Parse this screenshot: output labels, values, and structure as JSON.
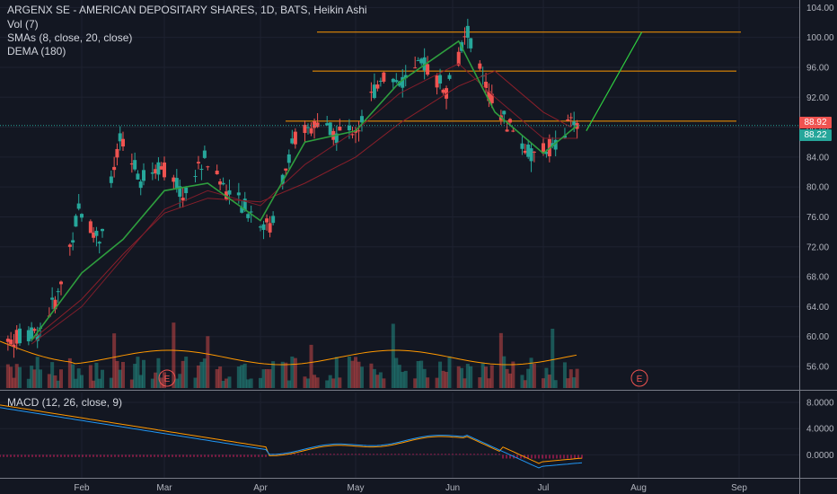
{
  "header": {
    "title": "ARGENX SE - AMERICAN DEPOSITARY SHARES, 1D, BATS, Heikin Ashi",
    "vol_label": "Vol (7)",
    "smas_label": "SMAs (8, close, 20, close)",
    "dema_label": "DEMA (180)",
    "macd_label": "MACD (12, 26, close, 9)"
  },
  "price_tags": {
    "last": "88.92",
    "sma": "88.22"
  },
  "colors": {
    "background": "#131722",
    "up": "#26a69a",
    "down": "#ef5350",
    "sma_fast": "#2e9e3e",
    "sma_slow": "#8a1f2a",
    "level_lines": "#ff9800",
    "projection": "#2ecc40",
    "macd_line": "#2196f3",
    "signal_line": "#ff9800",
    "histogram": "#e91e63",
    "earnings": "#ef5350"
  },
  "earnings_markers": [
    "E",
    "E"
  ],
  "chart_data": {
    "type": "candlestick",
    "style": "Heikin Ashi",
    "interval": "1D",
    "x_ticks": [
      "Feb",
      "Mar",
      "Apr",
      "May",
      "Jun",
      "Jul",
      "Aug",
      "Sep"
    ],
    "price_axis": {
      "ticks": [
        "104.00",
        "100.00",
        "96.00",
        "92.00",
        "88.00",
        "84.00",
        "80.00",
        "76.00",
        "72.00",
        "68.00",
        "64.00",
        "60.00",
        "56.00"
      ],
      "ylim": [
        53,
        105
      ]
    },
    "macd_axis": {
      "ticks": [
        "8.0000",
        "4.0000",
        "0.0000"
      ],
      "ylim": [
        -3.5,
        9.5
      ]
    },
    "level_lines": [
      100.7,
      95.5,
      88.8
    ],
    "projection": [
      {
        "date": "2019-07-15",
        "price": 87.5
      },
      {
        "date": "2019-08-02",
        "price": 100.7
      }
    ],
    "dema": [
      [
        "2019-01-15",
        59.5
      ],
      [
        "2019-02-01",
        65.0
      ],
      [
        "2019-02-15",
        71.0
      ],
      [
        "2019-03-01",
        76.5
      ],
      [
        "2019-03-15",
        78.5
      ],
      [
        "2019-04-01",
        78.0
      ],
      [
        "2019-04-15",
        80.5
      ],
      [
        "2019-05-01",
        84.0
      ],
      [
        "2019-05-15",
        88.5
      ],
      [
        "2019-06-03",
        93.5
      ],
      [
        "2019-06-15",
        95.5
      ],
      [
        "2019-07-01",
        90.0
      ],
      [
        "2019-07-10",
        88.0
      ]
    ],
    "sma_20": [
      [
        "2019-01-15",
        59.0
      ],
      [
        "2019-02-01",
        64.0
      ],
      [
        "2019-02-15",
        70.5
      ],
      [
        "2019-03-01",
        77.0
      ],
      [
        "2019-03-15",
        79.5
      ],
      [
        "2019-04-01",
        77.5
      ],
      [
        "2019-04-15",
        83.0
      ],
      [
        "2019-05-01",
        87.5
      ],
      [
        "2019-05-15",
        92.5
      ],
      [
        "2019-06-03",
        96.5
      ],
      [
        "2019-06-15",
        92.0
      ],
      [
        "2019-07-01",
        86.5
      ],
      [
        "2019-07-12",
        86.5
      ]
    ],
    "sma_8": [
      [
        "2019-01-15",
        59.5
      ],
      [
        "2019-02-01",
        68.5
      ],
      [
        "2019-02-15",
        73.0
      ],
      [
        "2019-03-01",
        79.5
      ],
      [
        "2019-03-15",
        80.5
      ],
      [
        "2019-04-01",
        75.5
      ],
      [
        "2019-04-15",
        86.0
      ],
      [
        "2019-05-01",
        87.5
      ],
      [
        "2019-05-15",
        94.0
      ],
      [
        "2019-06-03",
        99.5
      ],
      [
        "2019-06-15",
        90.0
      ],
      [
        "2019-07-01",
        84.5
      ],
      [
        "2019-07-12",
        88.22
      ]
    ],
    "candles_sampled": [
      {
        "date": "2019-01-17",
        "open": 59.0,
        "close": 60.5,
        "high": 61.5,
        "low": 58.0
      },
      {
        "date": "2019-01-24",
        "open": 62.0,
        "close": 65.5,
        "high": 66.5,
        "low": 61.0
      },
      {
        "date": "2019-01-31",
        "open": 67.0,
        "close": 77.0,
        "high": 85.0,
        "low": 66.0
      },
      {
        "date": "2019-02-07",
        "open": 76.0,
        "close": 73.0,
        "high": 78.0,
        "low": 70.0
      },
      {
        "date": "2019-02-14",
        "open": 77.0,
        "close": 86.0,
        "high": 88.0,
        "low": 76.0
      },
      {
        "date": "2019-02-21",
        "open": 80.0,
        "close": 81.0,
        "high": 83.0,
        "low": 79.0
      },
      {
        "date": "2019-02-28",
        "open": 82.0,
        "close": 83.0,
        "high": 86.0,
        "low": 81.0
      },
      {
        "date": "2019-03-07",
        "open": 80.0,
        "close": 79.0,
        "high": 82.0,
        "low": 77.0
      },
      {
        "date": "2019-03-14",
        "open": 81.0,
        "close": 84.0,
        "high": 86.0,
        "low": 80.0
      },
      {
        "date": "2019-03-21",
        "open": 81.0,
        "close": 79.5,
        "high": 82.0,
        "low": 78.0
      },
      {
        "date": "2019-03-28",
        "open": 80.0,
        "close": 77.0,
        "high": 81.0,
        "low": 75.5
      },
      {
        "date": "2019-04-04",
        "open": 75.0,
        "close": 74.5,
        "high": 76.0,
        "low": 73.0
      },
      {
        "date": "2019-04-11",
        "open": 78.0,
        "close": 86.0,
        "high": 88.0,
        "low": 77.0
      },
      {
        "date": "2019-04-18",
        "open": 87.5,
        "close": 88.5,
        "high": 90.0,
        "low": 86.5
      },
      {
        "date": "2019-04-25",
        "open": 87.5,
        "close": 87.0,
        "high": 88.5,
        "low": 86.0
      },
      {
        "date": "2019-05-02",
        "open": 87.0,
        "close": 88.0,
        "high": 89.5,
        "low": 86.0
      },
      {
        "date": "2019-05-09",
        "open": 89.0,
        "close": 95.0,
        "high": 100.5,
        "low": 88.0
      },
      {
        "date": "2019-05-16",
        "open": 92.0,
        "close": 94.0,
        "high": 96.5,
        "low": 91.0
      },
      {
        "date": "2019-05-23",
        "open": 94.0,
        "close": 96.5,
        "high": 98.0,
        "low": 93.0
      },
      {
        "date": "2019-05-30",
        "open": 95.0,
        "close": 93.0,
        "high": 96.0,
        "low": 92.0
      },
      {
        "date": "2019-06-06",
        "open": 98.0,
        "close": 100.5,
        "high": 103.0,
        "low": 97.0
      },
      {
        "date": "2019-06-13",
        "open": 96.0,
        "close": 92.0,
        "high": 98.0,
        "low": 91.0
      },
      {
        "date": "2019-06-20",
        "open": 90.0,
        "close": 88.0,
        "high": 91.0,
        "low": 87.0
      },
      {
        "date": "2019-06-27",
        "open": 86.0,
        "close": 84.0,
        "high": 87.0,
        "low": 82.5
      },
      {
        "date": "2019-07-04",
        "open": 84.5,
        "close": 85.5,
        "high": 86.5,
        "low": 83.5
      },
      {
        "date": "2019-07-11",
        "open": 87.0,
        "close": 88.92,
        "high": 89.5,
        "low": 86.5
      }
    ],
    "volume_ma_note": "Vol (7)"
  }
}
